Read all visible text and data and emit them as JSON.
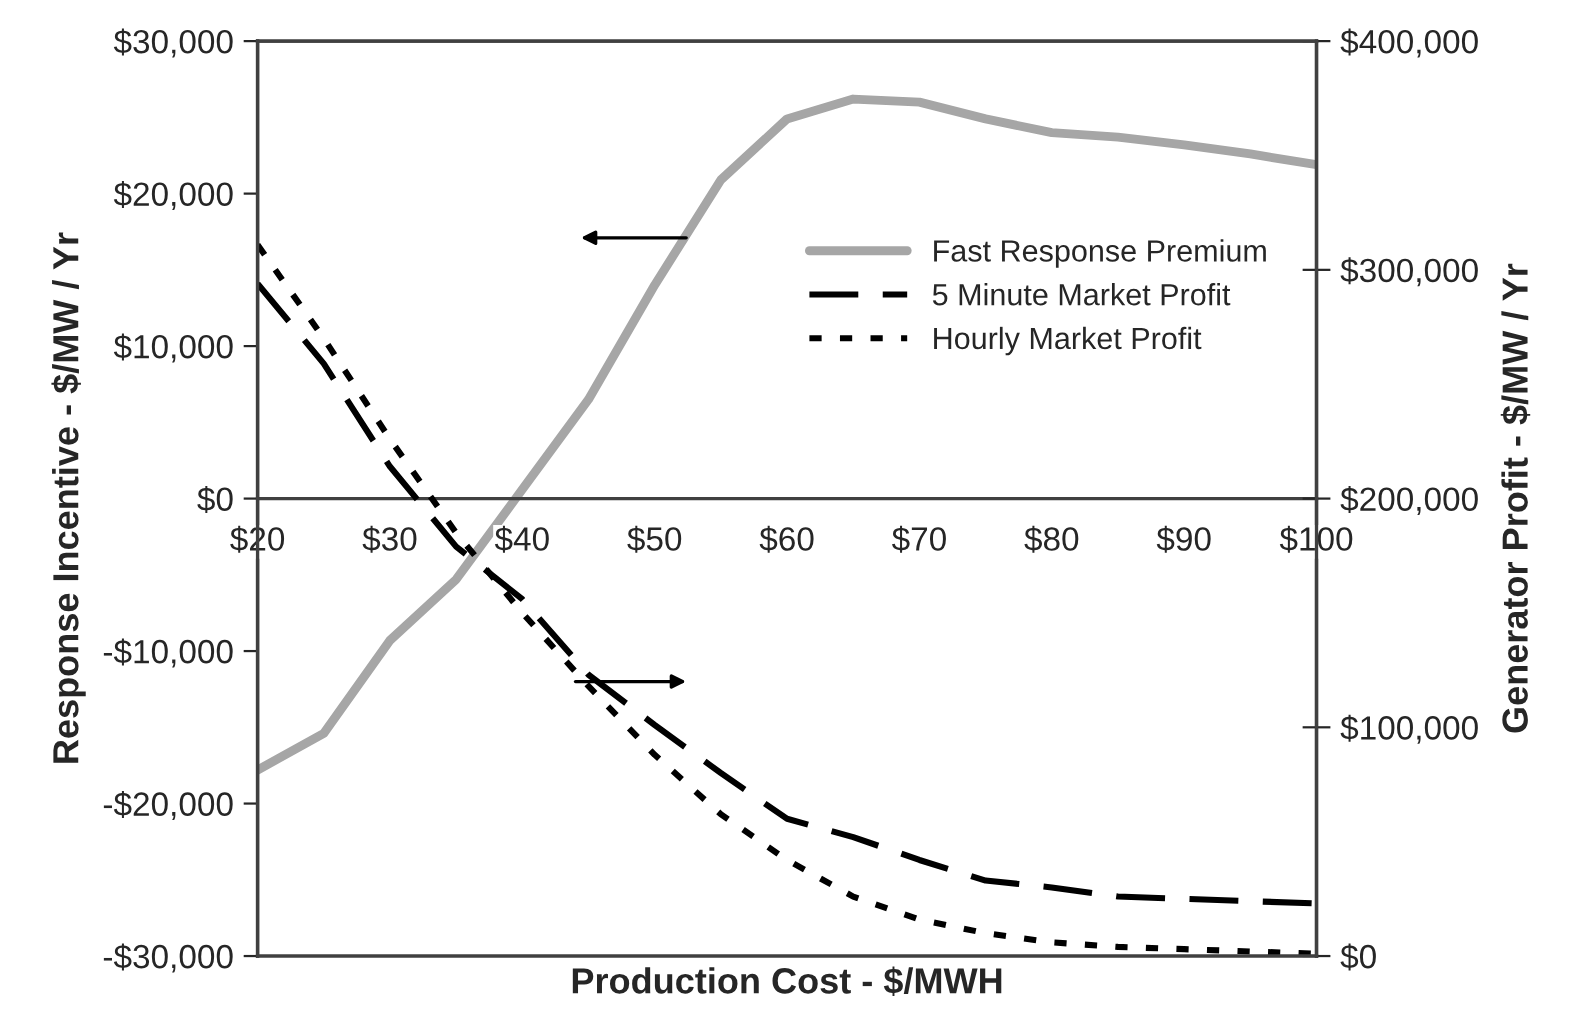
{
  "chart_data": {
    "type": "line",
    "xlabel": "Production Cost - $/MWH",
    "ylabel": "Response Incentive - $/MW / Yr",
    "y2label": "Generator Profit - $/MW / Yr",
    "x": [
      20,
      25,
      30,
      35,
      40,
      45,
      50,
      55,
      60,
      65,
      70,
      75,
      80,
      85,
      90,
      95,
      100
    ],
    "series": [
      {
        "name": "Fast Response Premium",
        "color": "#a6a6a6",
        "line_style": "solid",
        "values": [
          -17800,
          -15400,
          -9300,
          -5300,
          600,
          6500,
          14000,
          20900,
          24900,
          26200,
          26000,
          24900,
          24000,
          23700,
          23200,
          22600,
          21900
        ]
      },
      {
        "name": "5 Minute Market Profit",
        "color": "#000000",
        "line_style": "dashed",
        "axis": "y2",
        "values": [
          294000,
          259000,
          214000,
          179000,
          156000,
          123000,
          101000,
          80000,
          60000,
          52000,
          42000,
          33000,
          30000,
          26000,
          25000,
          24000,
          23000
        ]
      },
      {
        "name": "Hourly Market Profit",
        "color": "#000000",
        "line_style": "dotted",
        "axis": "y2",
        "values": [
          311000,
          270000,
          226000,
          185000,
          150000,
          118000,
          88000,
          62000,
          42000,
          26000,
          16000,
          10000,
          6000,
          4000,
          3000,
          2000,
          1000
        ]
      }
    ],
    "xlim": [
      20,
      100
    ],
    "xticks": [
      {
        "value": 20,
        "label": "$20"
      },
      {
        "value": 30,
        "label": "$30"
      },
      {
        "value": 40,
        "label": "$40"
      },
      {
        "value": 50,
        "label": "$50"
      },
      {
        "value": 60,
        "label": "$60"
      },
      {
        "value": 70,
        "label": "$70"
      },
      {
        "value": 80,
        "label": "$80"
      },
      {
        "value": 90,
        "label": "$90"
      },
      {
        "value": 100,
        "label": "$100"
      }
    ],
    "ylim": [
      -30000,
      30000
    ],
    "yticks": [
      {
        "value": -30000,
        "label": "-$30,000"
      },
      {
        "value": -20000,
        "label": "-$20,000"
      },
      {
        "value": -10000,
        "label": "-$10,000"
      },
      {
        "value": 0,
        "label": "$0"
      },
      {
        "value": 10000,
        "label": "$10,000"
      },
      {
        "value": 20000,
        "label": "$20,000"
      },
      {
        "value": 30000,
        "label": "$30,000"
      }
    ],
    "y2lim": [
      0,
      400000
    ],
    "y2ticks": [
      {
        "value": 0,
        "label": "$0"
      },
      {
        "value": 100000,
        "label": "$100,000"
      },
      {
        "value": 200000,
        "label": "$200,000"
      },
      {
        "value": 300000,
        "label": "$300,000"
      },
      {
        "value": 400000,
        "label": "$400,000"
      }
    ],
    "legend": "right",
    "grid": false,
    "marker": "none"
  }
}
